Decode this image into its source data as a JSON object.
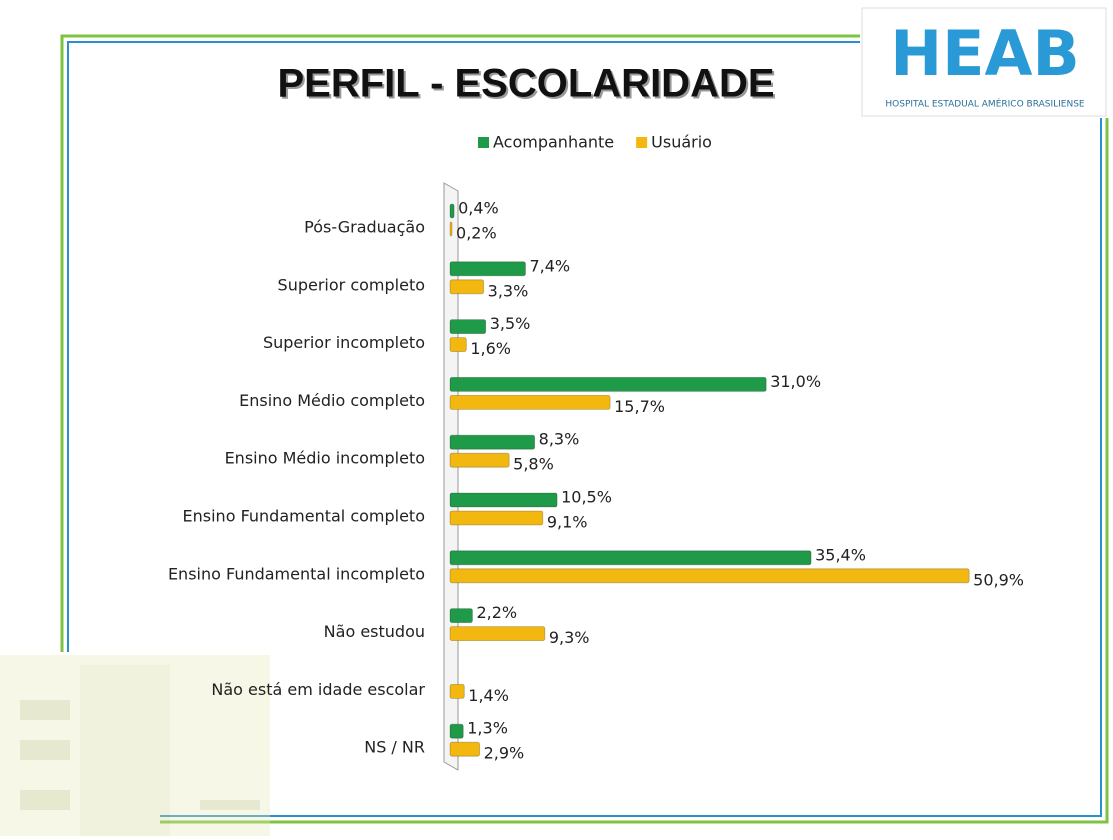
{
  "chart_data": {
    "type": "bar",
    "orientation": "horizontal",
    "title": "PERFIL - ESCOLARIDADE",
    "categories": [
      "Pós-Graduação",
      "Superior completo",
      "Superior incompleto",
      "Ensino Médio completo",
      "Ensino Médio incompleto",
      "Ensino Fundamental completo",
      "Ensino Fundamental incompleto",
      "Não estudou",
      "Não está em idade escolar",
      "NS / NR"
    ],
    "series": [
      {
        "name": "Acompanhante",
        "color": "#1e9a48",
        "values": [
          0.4,
          7.4,
          3.5,
          31.0,
          8.3,
          10.5,
          35.4,
          2.2,
          null,
          1.3
        ],
        "value_labels": [
          "0,4%",
          "7,4%",
          "3,5%",
          "31,0%",
          "8,3%",
          "10,5%",
          "35,4%",
          "2,2%",
          null,
          "1,3%"
        ]
      },
      {
        "name": "Usuário",
        "color": "#f2b80f",
        "values": [
          0.2,
          3.3,
          1.6,
          15.7,
          5.8,
          9.1,
          50.9,
          9.3,
          1.4,
          2.9
        ],
        "value_labels": [
          "0,2%",
          "3,3%",
          "1,6%",
          "15,7%",
          "5,8%",
          "9,1%",
          "50,9%",
          "9,3%",
          "1,4%",
          "2,9%"
        ]
      }
    ],
    "legend": "top"
  },
  "logo": {
    "text": "HEAB",
    "caption": "HOSPITAL ESTADUAL AMÉRICO BRASILIENSE"
  }
}
